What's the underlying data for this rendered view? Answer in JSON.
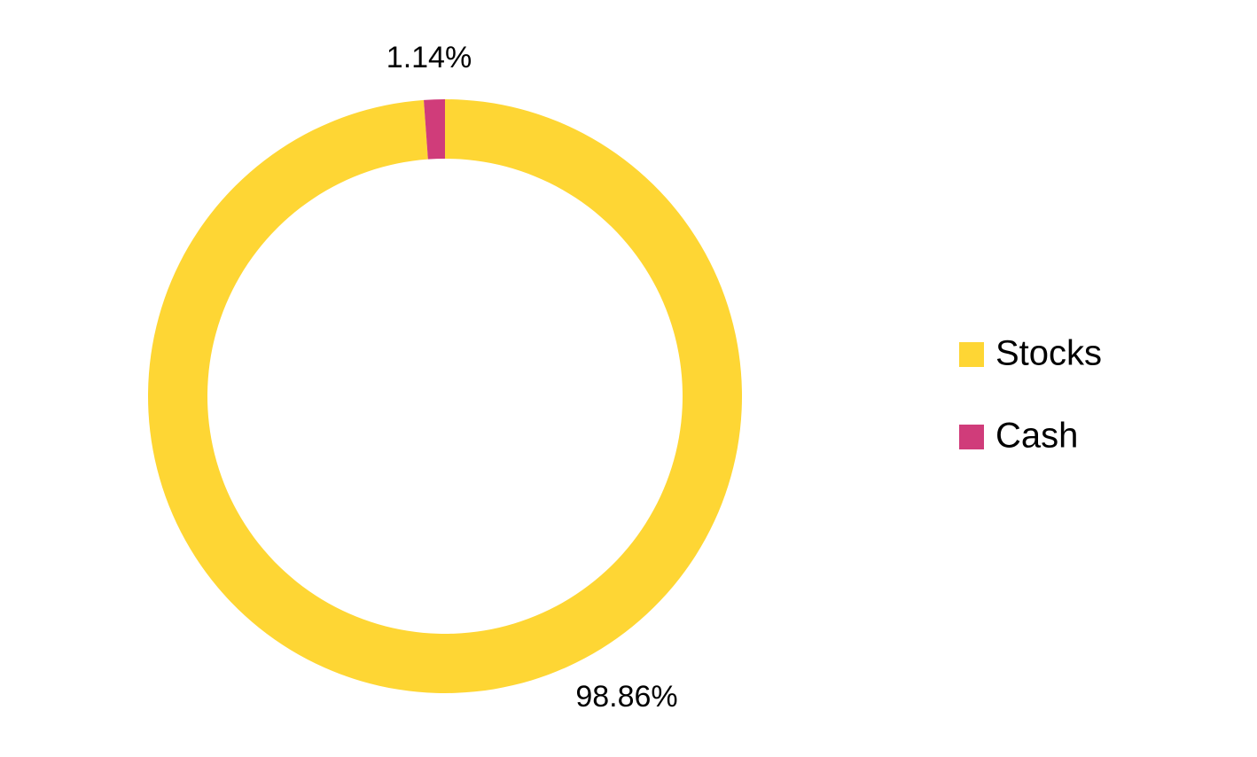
{
  "chart_data": {
    "type": "donut",
    "categories": [
      "Stocks",
      "Cash"
    ],
    "values": [
      98.86,
      1.14
    ],
    "value_labels": [
      "98.86%",
      "1.14%"
    ],
    "colors": [
      "#fed634",
      "#d03c7a"
    ],
    "legend": "right"
  }
}
